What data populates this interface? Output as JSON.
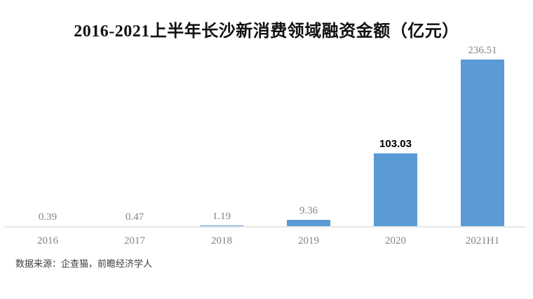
{
  "title": "2016-2021上半年长沙新消费领域融资金额（亿元）",
  "source_note": "数据来源：企查猫，前瞻经济学人",
  "colors": {
    "bar": "#5B9BD5",
    "axis_line": "#E7E7E7",
    "label_gray": "#848484",
    "emphasized_label": "#000000",
    "title_text": "#111111",
    "background": "#FFFFFF"
  },
  "chart_data": {
    "type": "bar",
    "title": "2016-2021上半年长沙新消费领域融资金额（亿元）",
    "unit": "亿元",
    "categories": [
      "2016",
      "2017",
      "2018",
      "2019",
      "2020",
      "2021H1"
    ],
    "values": [
      0.39,
      0.47,
      1.19,
      9.36,
      103.03,
      236.51
    ],
    "value_labels": [
      "0.39",
      "0.47",
      "1.19",
      "9.36",
      "103.03",
      "236.51"
    ],
    "emphasized_label_index": 4,
    "xlabel": "",
    "ylabel": "",
    "ylim": [
      0,
      236.51
    ],
    "grid": false,
    "legend": "none",
    "source": "数据来源：企查猫，前瞻经济学人"
  }
}
